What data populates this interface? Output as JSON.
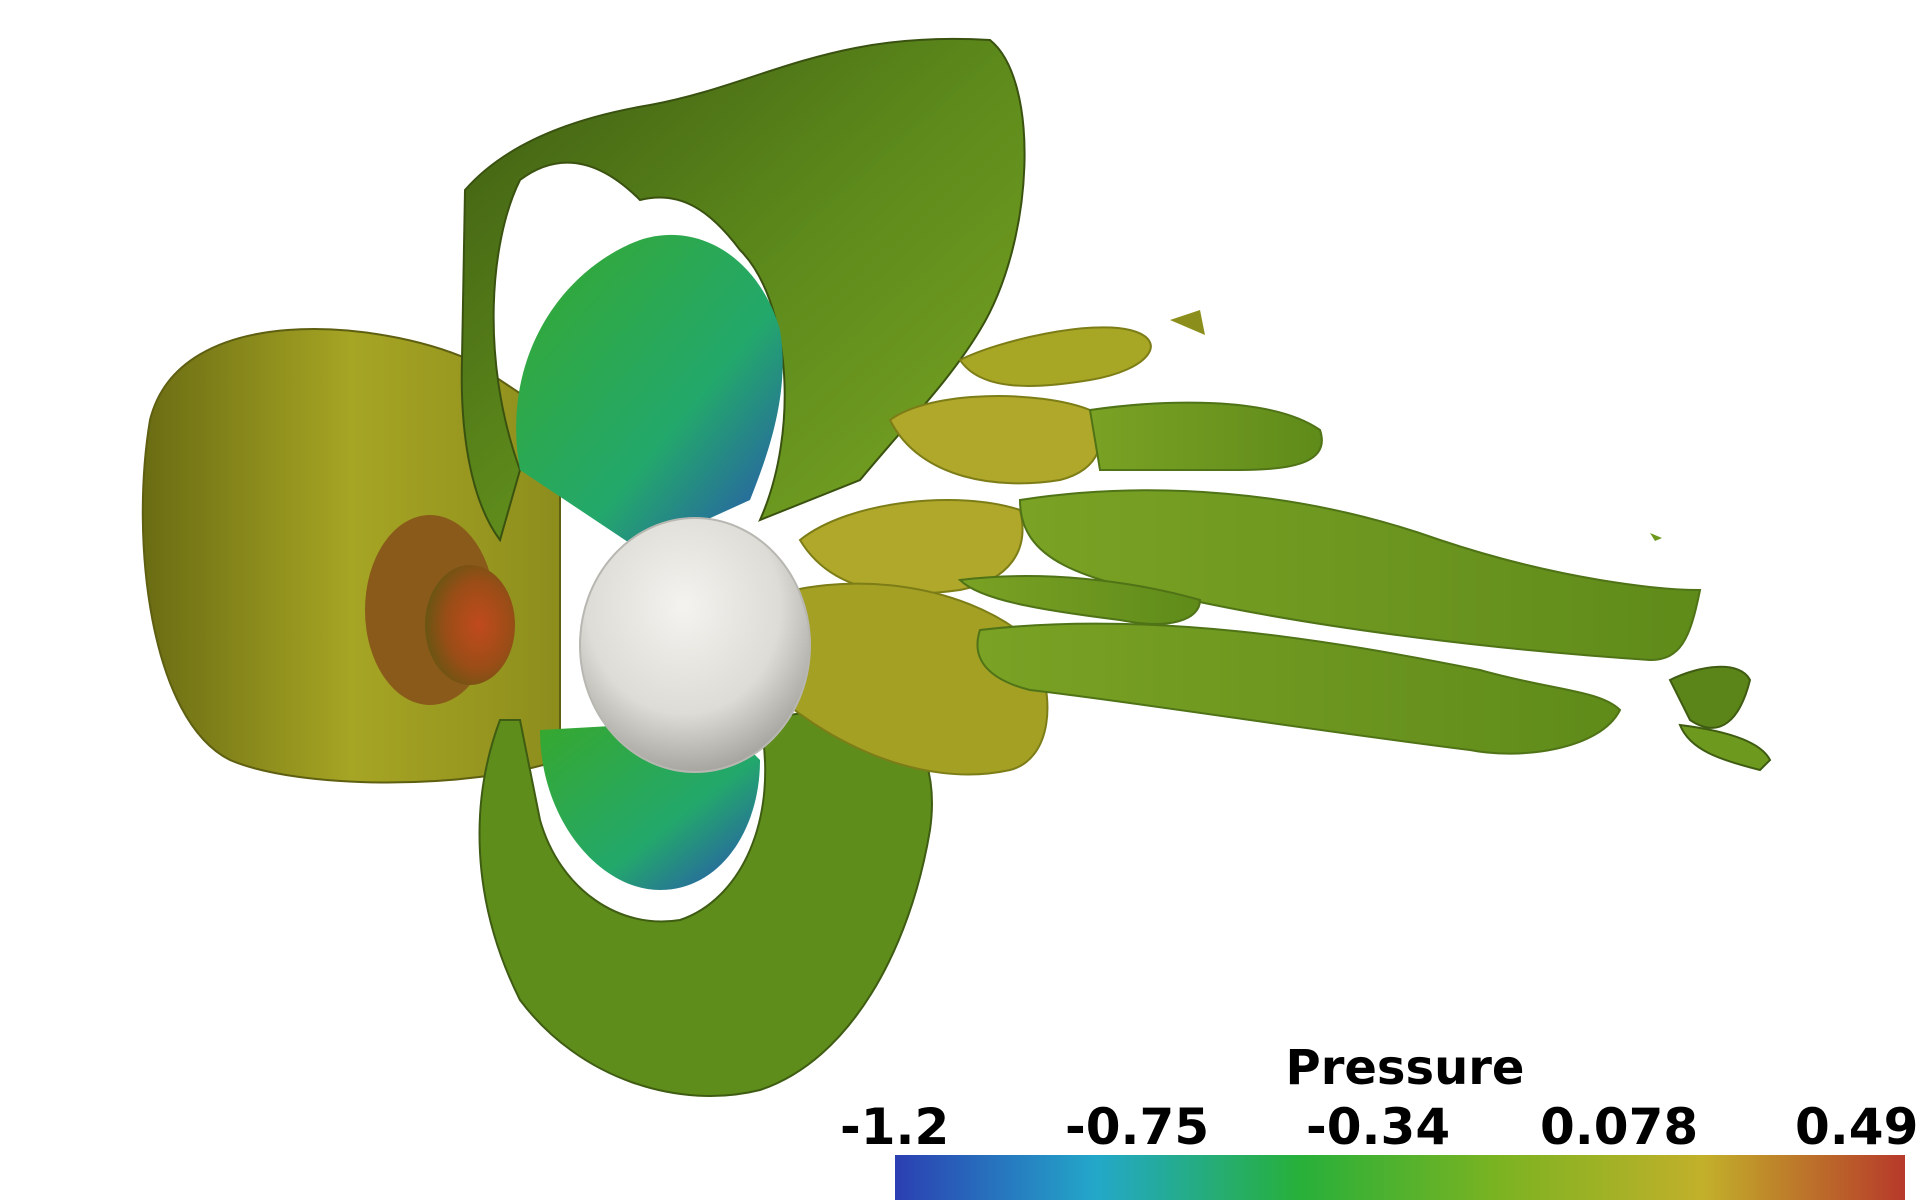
{
  "scene": {
    "description_label": "Pressure isosurfaces around sphere"
  },
  "legend": {
    "title": "Pressure",
    "ticks": [
      "-1.2",
      "-0.75",
      "-0.34",
      "0.078",
      "0.49"
    ],
    "colors": [
      "#2b3fb2",
      "#23a8c9",
      "#27b03a",
      "#7cb321",
      "#c2b02a",
      "#b7392a"
    ]
  }
}
